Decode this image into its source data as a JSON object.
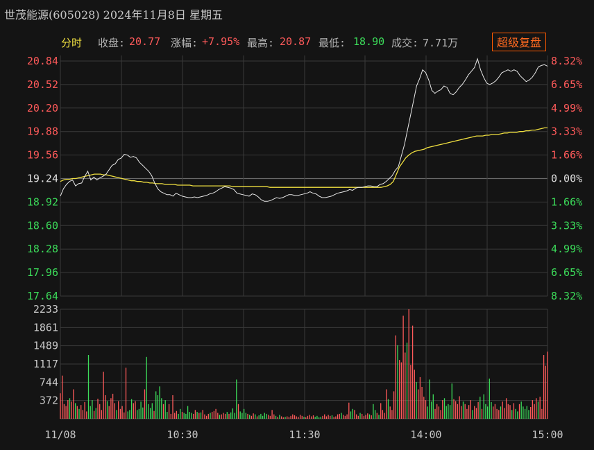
{
  "header": {
    "title": "世茂能源(605028) 2024年11月8日 星期五"
  },
  "infobar": {
    "mode_label": "分时",
    "close_label": "收盘:",
    "close_value": "20.77",
    "change_label": "涨幅:",
    "change_value": "+7.95%",
    "high_label": "最高:",
    "high_value": "20.87",
    "low_label": "最低:",
    "low_value": "18.90",
    "volume_label": "成交:",
    "volume_value": "7.71万",
    "fuquan_button": "超级复盘"
  },
  "colors": {
    "up": "#ff5a5a",
    "down": "#3cdc5a",
    "price_line": "#e8e8e8",
    "avg_line": "#f0e040",
    "grid": "#3a3a3a",
    "button_border": "#ff5a00"
  },
  "chart_data": [
    {
      "type": "line",
      "name": "intraday-price",
      "prev_close": 19.24,
      "ylim": [
        17.64,
        20.84
      ],
      "y_ticks_left": [
        "20.84",
        "20.52",
        "20.20",
        "19.88",
        "19.56",
        "19.24",
        "18.92",
        "18.60",
        "18.28",
        "17.96",
        "17.64"
      ],
      "y_ticks_right": [
        "8.32%",
        "6.65%",
        "4.99%",
        "3.33%",
        "1.66%",
        "0.00%",
        "1.66%",
        "3.33%",
        "4.99%",
        "6.65%",
        "8.32%"
      ],
      "x_ticks": [
        "11/08",
        "10:30",
        "11:30",
        "14:00",
        "15:00"
      ],
      "price": [
        19.0,
        19.1,
        19.16,
        19.2,
        19.22,
        19.14,
        19.17,
        19.18,
        19.27,
        19.34,
        19.22,
        19.26,
        19.22,
        19.25,
        19.27,
        19.3,
        19.36,
        19.42,
        19.44,
        19.5,
        19.52,
        19.57,
        19.56,
        19.53,
        19.54,
        19.52,
        19.46,
        19.42,
        19.38,
        19.34,
        19.28,
        19.18,
        19.1,
        19.06,
        19.04,
        19.02,
        19.02,
        19.0,
        19.04,
        19.02,
        19.0,
        18.99,
        18.98,
        18.98,
        18.99,
        18.98,
        18.99,
        19.0,
        19.01,
        19.03,
        19.04,
        19.06,
        19.09,
        19.11,
        19.13,
        19.12,
        19.11,
        19.09,
        19.04,
        19.03,
        19.02,
        19.01,
        19.0,
        19.03,
        19.02,
        18.99,
        18.95,
        18.93,
        18.93,
        18.94,
        18.96,
        18.98,
        18.97,
        18.98,
        19.0,
        19.02,
        19.02,
        19.01,
        19.01,
        19.02,
        19.03,
        19.04,
        19.06,
        19.04,
        19.03,
        19.0,
        18.98,
        18.98,
        18.99,
        19.0,
        19.02,
        19.04,
        19.05,
        19.06,
        19.07,
        19.09,
        19.08,
        19.11,
        19.12,
        19.12,
        19.13,
        19.14,
        19.14,
        19.13,
        19.13,
        19.16,
        19.17,
        19.2,
        19.24,
        19.28,
        19.35,
        19.4,
        19.55,
        19.7,
        19.9,
        20.1,
        20.3,
        20.5,
        20.6,
        20.72,
        20.68,
        20.58,
        20.44,
        20.4,
        20.43,
        20.45,
        20.5,
        20.48,
        20.4,
        20.38,
        20.42,
        20.48,
        20.52,
        20.58,
        20.65,
        20.7,
        20.75,
        20.87,
        20.72,
        20.62,
        20.54,
        20.52,
        20.54,
        20.57,
        20.62,
        20.68,
        20.7,
        20.72,
        20.7,
        20.72,
        20.7,
        20.64,
        20.6,
        20.56,
        20.58,
        20.62,
        20.68,
        20.76,
        20.78,
        20.79,
        20.77
      ],
      "avg": [
        19.2,
        19.22,
        19.23,
        19.23,
        19.24,
        19.24,
        19.25,
        19.26,
        19.27,
        19.28,
        19.29,
        19.3,
        19.3,
        19.3,
        19.29,
        19.29,
        19.28,
        19.27,
        19.26,
        19.25,
        19.24,
        19.23,
        19.22,
        19.21,
        19.21,
        19.2,
        19.2,
        19.19,
        19.19,
        19.18,
        19.18,
        19.17,
        19.17,
        19.17,
        19.16,
        19.16,
        19.16,
        19.16,
        19.15,
        19.15,
        19.15,
        19.15,
        19.15,
        19.14,
        19.14,
        19.14,
        19.14,
        19.14,
        19.14,
        19.14,
        19.14,
        19.14,
        19.14,
        19.14,
        19.14,
        19.14,
        19.13,
        19.13,
        19.13,
        19.13,
        19.13,
        19.13,
        19.13,
        19.13,
        19.13,
        19.13,
        19.13,
        19.13,
        19.12,
        19.12,
        19.12,
        19.12,
        19.12,
        19.12,
        19.12,
        19.12,
        19.12,
        19.12,
        19.12,
        19.12,
        19.12,
        19.12,
        19.12,
        19.12,
        19.12,
        19.12,
        19.12,
        19.12,
        19.12,
        19.12,
        19.12,
        19.12,
        19.12,
        19.12,
        19.12,
        19.12,
        19.12,
        19.12,
        19.12,
        19.12,
        19.12,
        19.12,
        19.12,
        19.12,
        19.12,
        19.13,
        19.14,
        19.16,
        19.2,
        19.3,
        19.4,
        19.46,
        19.52,
        19.56,
        19.59,
        19.61,
        19.62,
        19.63,
        19.64,
        19.66,
        19.67,
        19.68,
        19.69,
        19.7,
        19.71,
        19.72,
        19.73,
        19.74,
        19.75,
        19.76,
        19.77,
        19.78,
        19.79,
        19.8,
        19.81,
        19.82,
        19.82,
        19.82,
        19.83,
        19.83,
        19.84,
        19.84,
        19.84,
        19.85,
        19.86,
        19.86,
        19.87,
        19.87,
        19.87,
        19.88,
        19.88,
        19.89,
        19.89,
        19.9,
        19.9,
        19.91,
        19.92,
        19.93,
        19.93
      ]
    },
    {
      "type": "bar",
      "name": "volume",
      "ylim": [
        0,
        2233
      ],
      "y_ticks": [
        "2233",
        "1861",
        "1489",
        "1117",
        "744",
        "372"
      ],
      "values": [
        520,
        880,
        300,
        260,
        380,
        420,
        350,
        600,
        320,
        260,
        200,
        280,
        180,
        340,
        150,
        1300,
        260,
        380,
        160,
        220,
        410,
        300,
        180,
        960,
        480,
        360,
        260,
        420,
        510,
        320,
        180,
        360,
        200,
        260,
        130,
        1040,
        150,
        180,
        400,
        320,
        360,
        180,
        200,
        350,
        230,
        600,
        1260,
        300,
        220,
        320,
        160,
        560,
        480,
        660,
        420,
        300,
        380,
        140,
        300,
        100,
        480,
        120,
        160,
        100,
        200,
        140,
        120,
        100,
        260,
        140,
        120,
        100,
        180,
        140,
        120,
        130,
        180,
        90,
        60,
        100,
        120,
        140,
        160,
        200,
        120,
        80,
        90,
        120,
        100,
        140,
        100,
        130,
        210,
        120,
        800,
        300,
        150,
        120,
        200,
        120,
        100,
        80,
        60,
        110,
        90,
        50,
        70,
        100,
        60,
        120,
        100,
        80,
        60,
        180,
        90,
        60,
        40,
        80,
        50,
        30,
        40,
        50,
        40,
        60,
        90,
        70,
        50,
        40,
        80,
        60,
        40,
        30,
        60,
        80,
        50,
        70,
        40,
        60,
        30,
        40,
        60,
        90,
        50,
        80,
        60,
        70,
        40,
        50,
        90,
        100,
        120,
        80,
        60,
        90,
        330,
        150,
        200,
        180,
        90,
        60,
        120,
        100,
        60,
        80,
        110,
        90,
        70,
        300,
        180,
        120,
        80,
        320,
        180,
        120,
        600,
        400,
        250,
        180,
        560,
        1700,
        1500,
        1200,
        1150,
        2100,
        1350,
        1550,
        2233,
        1100,
        1900,
        1000,
        750,
        600,
        850,
        650,
        450,
        380,
        250,
        800,
        350,
        500,
        200,
        300,
        250,
        180,
        380,
        420,
        260,
        300,
        280,
        720,
        400,
        360,
        300,
        460,
        260,
        350,
        300,
        200,
        280,
        380,
        180,
        260,
        220,
        340,
        450,
        200,
        500,
        300,
        250,
        820,
        340,
        250,
        300,
        200,
        180,
        250,
        350,
        220,
        420,
        300,
        280,
        180,
        320,
        200,
        150,
        300,
        350,
        250,
        200,
        260,
        180,
        240,
        380,
        300,
        420,
        350,
        450,
        200,
        1300,
        1080,
        1370
      ]
    }
  ]
}
